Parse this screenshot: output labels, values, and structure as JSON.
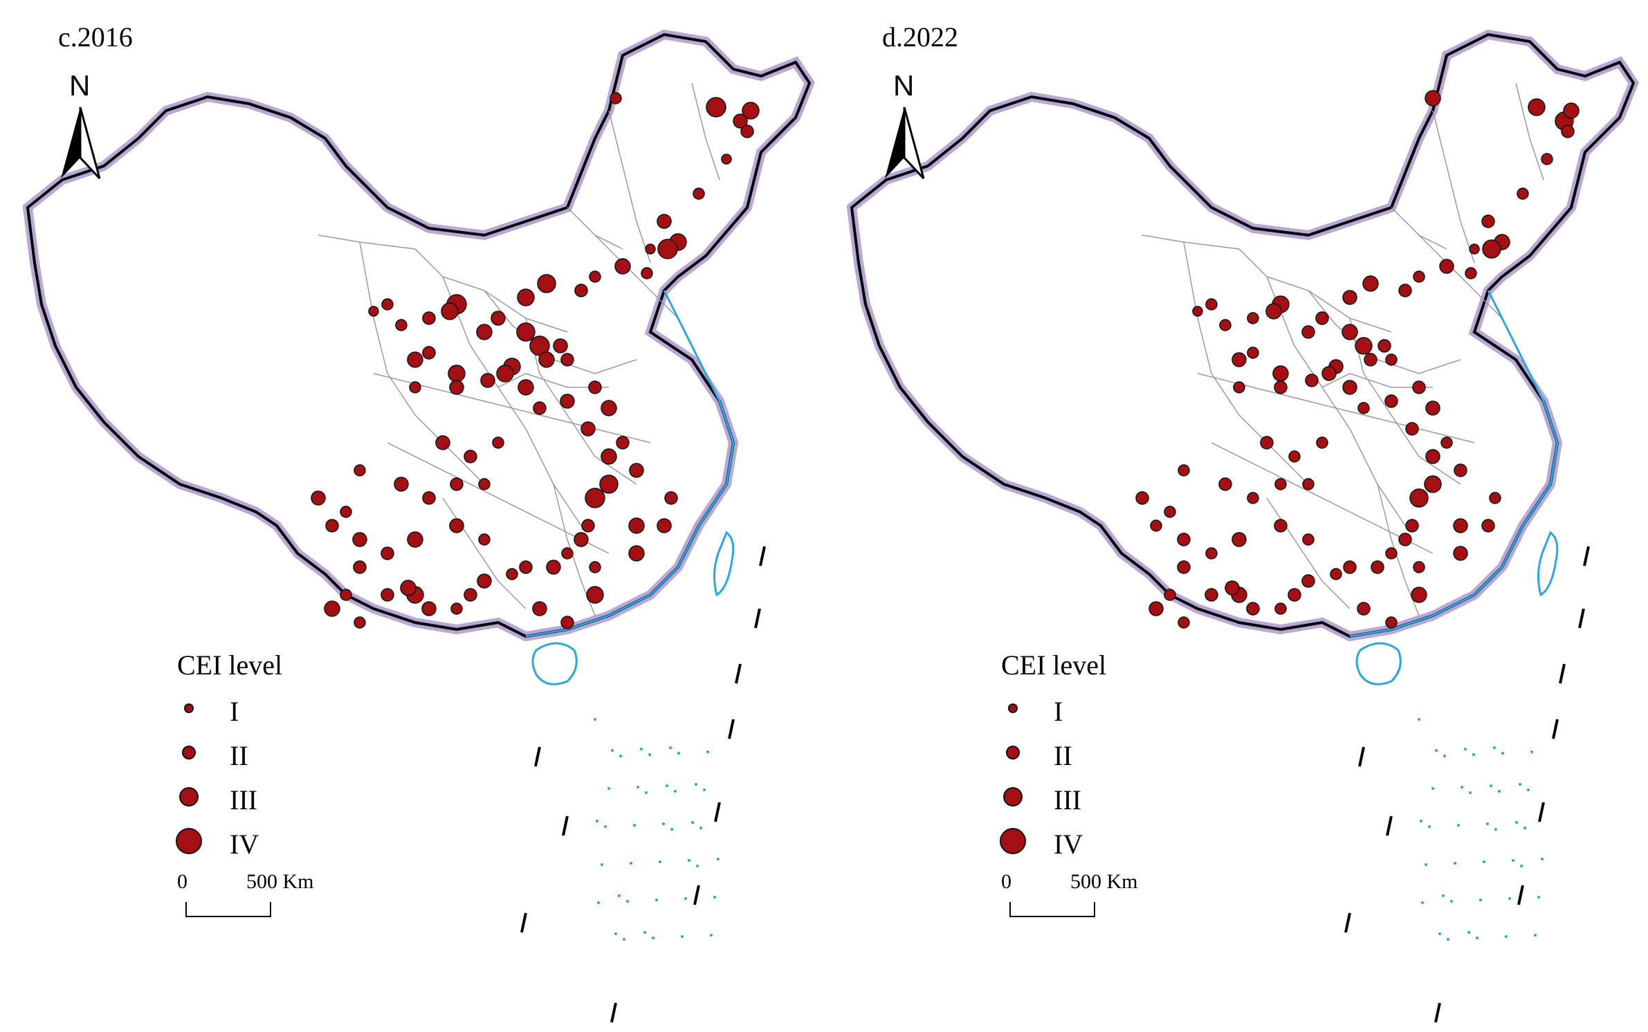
{
  "panels": [
    {
      "title": "c.2016",
      "north": "N",
      "legend": {
        "title": "CEI level",
        "levels": [
          "I",
          "II",
          "III",
          "IV"
        ]
      },
      "scale": {
        "zero": "0",
        "distance": "500 Km"
      },
      "points_level_mix": "more large circles in north-central region"
    },
    {
      "title": "d.2022",
      "north": "N",
      "legend": {
        "title": "CEI level",
        "levels": [
          "I",
          "II",
          "III",
          "IV"
        ]
      },
      "scale": {
        "zero": "0",
        "distance": "500 Km"
      },
      "points_level_mix": "fewer large circles, more medium circles"
    }
  ],
  "colors": {
    "point_fill": "#a30f12",
    "border_halo": "#b9a8d6",
    "coast": "#2aa6e0",
    "province_lines": "#9a9a9a"
  }
}
